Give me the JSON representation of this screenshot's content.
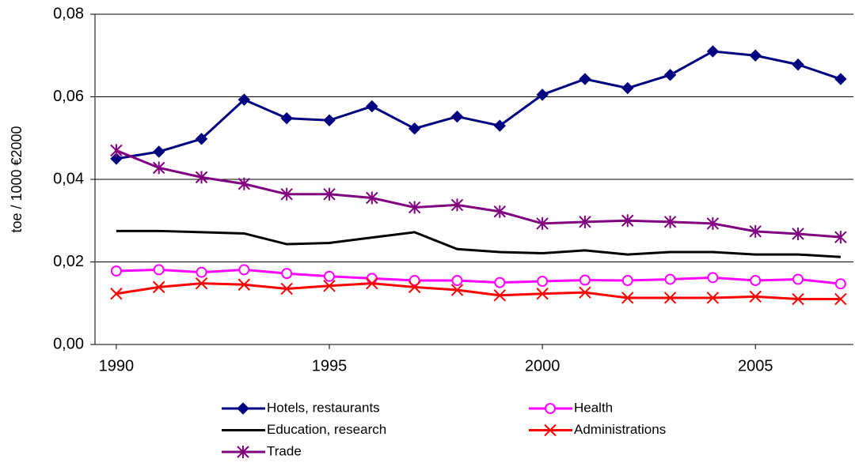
{
  "chart_data": {
    "type": "line",
    "y_label": "toe / 1000 €2000",
    "x": [
      1990,
      1991,
      1992,
      1993,
      1994,
      1995,
      1996,
      1997,
      1998,
      1999,
      2000,
      2001,
      2002,
      2003,
      2004,
      2005,
      2006,
      2007
    ],
    "xlim": [
      1989.5,
      2007.3
    ],
    "xticks": [
      1990,
      1995,
      2000,
      2005
    ],
    "ylim": [
      0,
      0.08
    ],
    "yticks": [
      {
        "value": 0,
        "label": "0,00"
      },
      {
        "value": 0.02,
        "label": "0,02"
      },
      {
        "value": 0.04,
        "label": "0,04"
      },
      {
        "value": 0.06,
        "label": "0,06"
      },
      {
        "value": 0.08,
        "label": "0,08"
      }
    ],
    "grid": true,
    "series": [
      {
        "name": "Hotels, restaurants",
        "color": "#000080",
        "marker": "diamond",
        "values": [
          0.045,
          0.0467,
          0.0498,
          0.0593,
          0.0548,
          0.0543,
          0.0577,
          0.0523,
          0.0552,
          0.053,
          0.0605,
          0.0643,
          0.0621,
          0.0653,
          0.071,
          0.07,
          0.0678,
          0.0643
        ]
      },
      {
        "name": "Health",
        "color": "#ff00ff",
        "marker": "circle",
        "values": [
          0.0178,
          0.0181,
          0.0175,
          0.0181,
          0.0172,
          0.0165,
          0.016,
          0.0155,
          0.0155,
          0.015,
          0.0153,
          0.0156,
          0.0155,
          0.0158,
          0.0162,
          0.0155,
          0.0158,
          0.0147
        ]
      },
      {
        "name": "Education, research",
        "color": "#000000",
        "marker": "none",
        "values": [
          0.0275,
          0.0275,
          0.0272,
          0.0269,
          0.0243,
          0.0246,
          0.0259,
          0.0272,
          0.0231,
          0.0224,
          0.0221,
          0.0228,
          0.0218,
          0.0224,
          0.0224,
          0.0218,
          0.0218,
          0.0212
        ]
      },
      {
        "name": "Administrations",
        "color": "#ff0000",
        "marker": "x",
        "values": [
          0.0123,
          0.0139,
          0.0148,
          0.0145,
          0.0135,
          0.0142,
          0.0148,
          0.0139,
          0.0132,
          0.0119,
          0.0123,
          0.0126,
          0.0113,
          0.0113,
          0.0113,
          0.0116,
          0.011,
          0.011
        ]
      },
      {
        "name": "Trade",
        "color": "#800080",
        "marker": "asterisk",
        "values": [
          0.047,
          0.0428,
          0.0405,
          0.0389,
          0.0364,
          0.0364,
          0.0355,
          0.0332,
          0.0338,
          0.0322,
          0.0293,
          0.0297,
          0.03,
          0.0297,
          0.0293,
          0.0274,
          0.0268,
          0.026
        ]
      }
    ]
  }
}
